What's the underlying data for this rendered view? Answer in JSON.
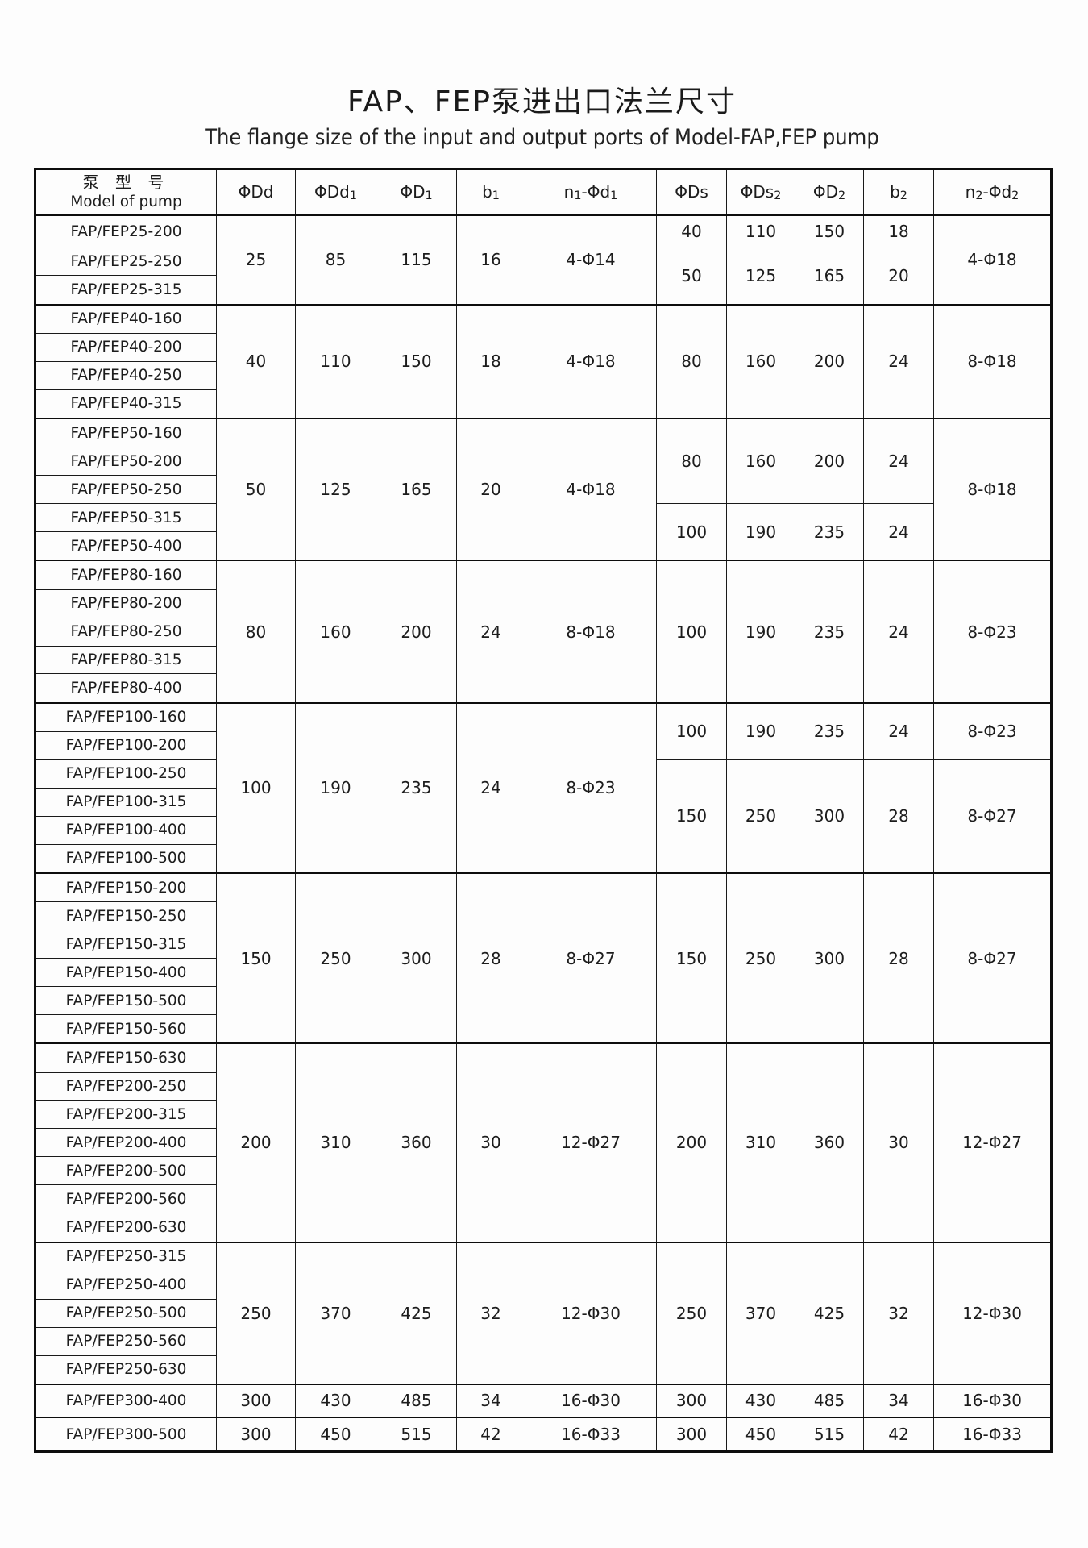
{
  "title": "FAP、FEP泵进出口法兰尺寸",
  "subtitle": "The flange size of the input and output ports of Model-FAP,FEP pump",
  "table": {
    "header": {
      "model_zh": "泵 型 号",
      "model_en": "Model of pump",
      "cols": [
        {
          "parts": [
            {
              "t": "ΦDd"
            }
          ]
        },
        {
          "parts": [
            {
              "t": "ΦDd"
            },
            {
              "t": "1",
              "sub": true
            }
          ]
        },
        {
          "parts": [
            {
              "t": "ΦD"
            },
            {
              "t": "1",
              "sub": true
            }
          ]
        },
        {
          "parts": [
            {
              "t": "b"
            },
            {
              "t": "1",
              "sub": true
            }
          ]
        },
        {
          "parts": [
            {
              "t": "n"
            },
            {
              "t": "1",
              "sub": true
            },
            {
              "t": "-Φd"
            },
            {
              "t": "1",
              "sub": true
            }
          ]
        },
        {
          "parts": [
            {
              "t": "ΦDs"
            }
          ]
        },
        {
          "parts": [
            {
              "t": "ΦDs"
            },
            {
              "t": "2",
              "sub": true
            }
          ]
        },
        {
          "parts": [
            {
              "t": "ΦD"
            },
            {
              "t": "2",
              "sub": true
            }
          ]
        },
        {
          "parts": [
            {
              "t": "b"
            },
            {
              "t": "2",
              "sub": true
            }
          ]
        },
        {
          "parts": [
            {
              "t": "n"
            },
            {
              "t": "2",
              "sub": true
            },
            {
              "t": "-Φd"
            },
            {
              "t": "2",
              "sub": true
            }
          ]
        }
      ]
    },
    "groups": [
      {
        "models": [
          "FAP/FEP25-200",
          "FAP/FEP25-250",
          "FAP/FEP25-315"
        ],
        "left": {
          "dd": "25",
          "dd1": "85",
          "d1": "115",
          "b1": "16",
          "n1": "4-Φ14"
        },
        "right_subs": [
          {
            "rows": 1,
            "ds": "40",
            "ds2": "110",
            "d2": "150",
            "b2": "18"
          },
          {
            "rows": 2,
            "ds": "50",
            "ds2": "125",
            "d2": "165",
            "b2": "20"
          }
        ],
        "n2_subs": [
          {
            "rows": 3,
            "n2": "4-Φ18"
          }
        ]
      },
      {
        "models": [
          "FAP/FEP40-160",
          "FAP/FEP40-200",
          "FAP/FEP40-250",
          "FAP/FEP40-315"
        ],
        "left": {
          "dd": "40",
          "dd1": "110",
          "d1": "150",
          "b1": "18",
          "n1": "4-Φ18"
        },
        "right_subs": [
          {
            "rows": 4,
            "ds": "80",
            "ds2": "160",
            "d2": "200",
            "b2": "24"
          }
        ],
        "n2_subs": [
          {
            "rows": 4,
            "n2": "8-Φ18"
          }
        ]
      },
      {
        "models": [
          "FAP/FEP50-160",
          "FAP/FEP50-200",
          "FAP/FEP50-250",
          "FAP/FEP50-315",
          "FAP/FEP50-400"
        ],
        "left": {
          "dd": "50",
          "dd1": "125",
          "d1": "165",
          "b1": "20",
          "n1": "4-Φ18"
        },
        "right_subs": [
          {
            "rows": 3,
            "ds": "80",
            "ds2": "160",
            "d2": "200",
            "b2": "24"
          },
          {
            "rows": 2,
            "ds": "100",
            "ds2": "190",
            "d2": "235",
            "b2": "24"
          }
        ],
        "n2_subs": [
          {
            "rows": 5,
            "n2": "8-Φ18"
          }
        ]
      },
      {
        "models": [
          "FAP/FEP80-160",
          "FAP/FEP80-200",
          "FAP/FEP80-250",
          "FAP/FEP80-315",
          "FAP/FEP80-400"
        ],
        "left": {
          "dd": "80",
          "dd1": "160",
          "d1": "200",
          "b1": "24",
          "n1": "8-Φ18"
        },
        "right_subs": [
          {
            "rows": 5,
            "ds": "100",
            "ds2": "190",
            "d2": "235",
            "b2": "24"
          }
        ],
        "n2_subs": [
          {
            "rows": 5,
            "n2": "8-Φ23"
          }
        ]
      },
      {
        "models": [
          "FAP/FEP100-160",
          "FAP/FEP100-200",
          "FAP/FEP100-250",
          "FAP/FEP100-315",
          "FAP/FEP100-400",
          "FAP/FEP100-500"
        ],
        "left": {
          "dd": "100",
          "dd1": "190",
          "d1": "235",
          "b1": "24",
          "n1": "8-Φ23"
        },
        "right_subs": [
          {
            "rows": 2,
            "ds": "100",
            "ds2": "190",
            "d2": "235",
            "b2": "24"
          },
          {
            "rows": 4,
            "ds": "150",
            "ds2": "250",
            "d2": "300",
            "b2": "28"
          }
        ],
        "n2_subs": [
          {
            "rows": 2,
            "n2": "8-Φ23"
          },
          {
            "rows": 4,
            "n2": "8-Φ27"
          }
        ]
      },
      {
        "models": [
          "FAP/FEP150-200",
          "FAP/FEP150-250",
          "FAP/FEP150-315",
          "FAP/FEP150-400",
          "FAP/FEP150-500",
          "FAP/FEP150-560"
        ],
        "left": {
          "dd": "150",
          "dd1": "250",
          "d1": "300",
          "b1": "28",
          "n1": "8-Φ27"
        },
        "right_subs": [
          {
            "rows": 6,
            "ds": "150",
            "ds2": "250",
            "d2": "300",
            "b2": "28"
          }
        ],
        "n2_subs": [
          {
            "rows": 6,
            "n2": "8-Φ27"
          }
        ]
      },
      {
        "models": [
          "FAP/FEP150-630",
          "FAP/FEP200-250",
          "FAP/FEP200-315",
          "FAP/FEP200-400",
          "FAP/FEP200-500",
          "FAP/FEP200-560",
          "FAP/FEP200-630"
        ],
        "left": {
          "dd": "200",
          "dd1": "310",
          "d1": "360",
          "b1": "30",
          "n1": "12-Φ27"
        },
        "right_subs": [
          {
            "rows": 7,
            "ds": "200",
            "ds2": "310",
            "d2": "360",
            "b2": "30"
          }
        ],
        "n2_subs": [
          {
            "rows": 7,
            "n2": "12-Φ27"
          }
        ]
      },
      {
        "models": [
          "FAP/FEP250-315",
          "FAP/FEP250-400",
          "FAP/FEP250-500",
          "FAP/FEP250-560",
          "FAP/FEP250-630"
        ],
        "left": {
          "dd": "250",
          "dd1": "370",
          "d1": "425",
          "b1": "32",
          "n1": "12-Φ30"
        },
        "right_subs": [
          {
            "rows": 5,
            "ds": "250",
            "ds2": "370",
            "d2": "425",
            "b2": "32"
          }
        ],
        "n2_subs": [
          {
            "rows": 5,
            "n2": "12-Φ30"
          }
        ]
      },
      {
        "models": [
          "FAP/FEP300-400"
        ],
        "left": {
          "dd": "300",
          "dd1": "430",
          "d1": "485",
          "b1": "34",
          "n1": "16-Φ30"
        },
        "right_subs": [
          {
            "rows": 1,
            "ds": "300",
            "ds2": "430",
            "d2": "485",
            "b2": "34"
          }
        ],
        "n2_subs": [
          {
            "rows": 1,
            "n2": "16-Φ30"
          }
        ]
      },
      {
        "models": [
          "FAP/FEP300-500"
        ],
        "left": {
          "dd": "300",
          "dd1": "450",
          "d1": "515",
          "b1": "42",
          "n1": "16-Φ33"
        },
        "right_subs": [
          {
            "rows": 1,
            "ds": "300",
            "ds2": "450",
            "d2": "515",
            "b2": "42"
          }
        ],
        "n2_subs": [
          {
            "rows": 1,
            "n2": "16-Φ33"
          }
        ]
      }
    ]
  }
}
